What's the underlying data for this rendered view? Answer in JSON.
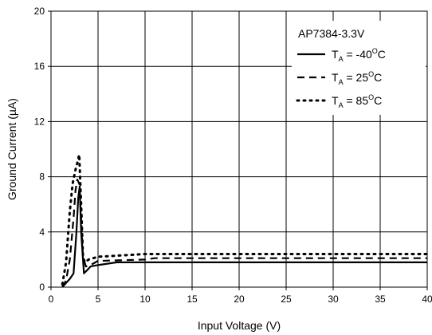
{
  "chart_data": {
    "type": "line",
    "title": "",
    "xlabel": "Input Voltage (V)",
    "ylabel": "Ground Current (µA)",
    "xlim": [
      0,
      40
    ],
    "ylim": [
      0,
      20
    ],
    "x_ticks": [
      "0",
      "5",
      "10",
      "15",
      "20",
      "25",
      "30",
      "35",
      "40"
    ],
    "y_ticks": [
      "0",
      "4",
      "8",
      "12",
      "16",
      "20"
    ],
    "grid": true,
    "legend_title": "AP7384-3.3V",
    "legend_position": "top-right",
    "series": [
      {
        "name": "TA = -40°C",
        "legend_parts": {
          "t": "T",
          "sub": "A",
          "eq": " = -40",
          "sup": "O",
          "unit": "C"
        },
        "style": "solid",
        "x": [
          1.2,
          1.6,
          2.0,
          2.4,
          2.7,
          2.9,
          3.05,
          3.2,
          3.5,
          3.8,
          4.2,
          5.0,
          7.0,
          10,
          15,
          20,
          25,
          30,
          35,
          40
        ],
        "y": [
          0.0,
          0.3,
          0.6,
          1.0,
          4.0,
          6.5,
          7.3,
          4.0,
          1.0,
          1.2,
          1.5,
          1.6,
          1.8,
          1.8,
          1.8,
          1.8,
          1.8,
          1.8,
          1.8,
          1.8
        ]
      },
      {
        "name": "TA = 25°C",
        "legend_parts": {
          "t": "T",
          "sub": "A",
          "eq": " = 25",
          "sup": "O",
          "unit": "C"
        },
        "style": "dashed",
        "x": [
          1.2,
          1.6,
          2.0,
          2.4,
          2.6,
          2.8,
          3.0,
          3.2,
          3.4,
          3.7,
          4.2,
          5.0,
          10,
          11,
          15,
          20,
          25,
          30,
          35,
          40
        ],
        "y": [
          0.0,
          0.5,
          2.0,
          5.0,
          7.0,
          7.8,
          7.5,
          5.0,
          2.2,
          1.5,
          1.6,
          1.9,
          2.0,
          2.1,
          2.1,
          2.1,
          2.1,
          2.1,
          2.1,
          2.1
        ]
      },
      {
        "name": "TA = 85°C",
        "legend_parts": {
          "t": "T",
          "sub": "A",
          "eq": " = 85",
          "sup": "O",
          "unit": "C"
        },
        "style": "dotted",
        "x": [
          1.2,
          1.6,
          2.0,
          2.3,
          2.6,
          2.8,
          3.0,
          3.2,
          3.4,
          3.6,
          4.0,
          5.0,
          10,
          15,
          20,
          25,
          30,
          35,
          40
        ],
        "y": [
          0.2,
          1.8,
          5.5,
          7.5,
          8.5,
          9.0,
          9.6,
          6.0,
          2.2,
          1.8,
          2.0,
          2.2,
          2.4,
          2.4,
          2.4,
          2.4,
          2.4,
          2.4,
          2.4
        ]
      }
    ]
  }
}
